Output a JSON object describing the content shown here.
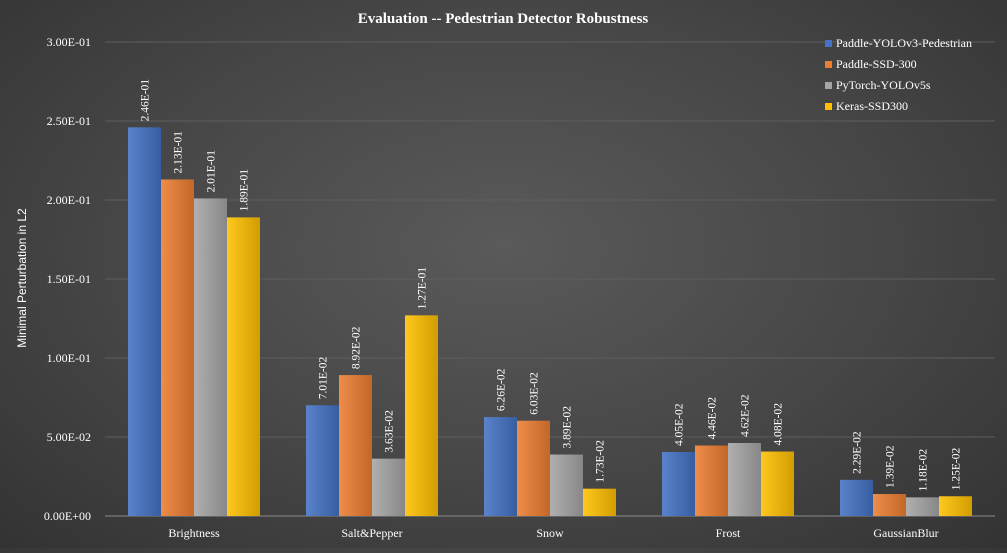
{
  "chart_data": {
    "type": "bar",
    "title": "Evaluation -- Pedestrian Detector Robustness",
    "xlabel": "",
    "ylabel": "Minimal Perturbation in L2",
    "ylim": [
      0,
      0.3
    ],
    "yticks": [
      0,
      0.05,
      0.1,
      0.15,
      0.2,
      0.25,
      0.3
    ],
    "ytick_labels": [
      "0.00E+00",
      "5.00E-02",
      "1.00E-01",
      "1.50E-01",
      "2.00E-01",
      "2.50E-01",
      "3.00E-01"
    ],
    "grid": true,
    "legend_position": "top-right",
    "categories": [
      "Brightness",
      "Salt&Pepper",
      "Snow",
      "Frost",
      "GaussianBlur"
    ],
    "series": [
      {
        "name": "Paddle-YOLOv3-Pedestrian",
        "color": "#4472c4",
        "values": [
          0.246,
          0.0701,
          0.0626,
          0.0405,
          0.0229
        ],
        "labels": [
          "2.46E-01",
          "7.01E-02",
          "6.26E-02",
          "4.05E-02",
          "2.29E-02"
        ]
      },
      {
        "name": "Paddle-SSD-300",
        "color": "#ed7d31",
        "values": [
          0.213,
          0.0892,
          0.0603,
          0.0446,
          0.0139
        ],
        "labels": [
          "2.13E-01",
          "8.92E-02",
          "6.03E-02",
          "4.46E-02",
          "1.39E-02"
        ]
      },
      {
        "name": "PyTorch-YOLOv5s",
        "color": "#a5a5a5",
        "values": [
          0.201,
          0.0363,
          0.0389,
          0.0462,
          0.0118
        ],
        "labels": [
          "2.01E-01",
          "3.63E-02",
          "3.89E-02",
          "4.62E-02",
          "1.18E-02"
        ]
      },
      {
        "name": "Keras-SSD300",
        "color": "#ffc000",
        "values": [
          0.189,
          0.127,
          0.0173,
          0.0408,
          0.0125
        ],
        "labels": [
          "1.89E-01",
          "1.27E-01",
          "1.73E-02",
          "4.08E-02",
          "1.25E-02"
        ]
      }
    ]
  }
}
